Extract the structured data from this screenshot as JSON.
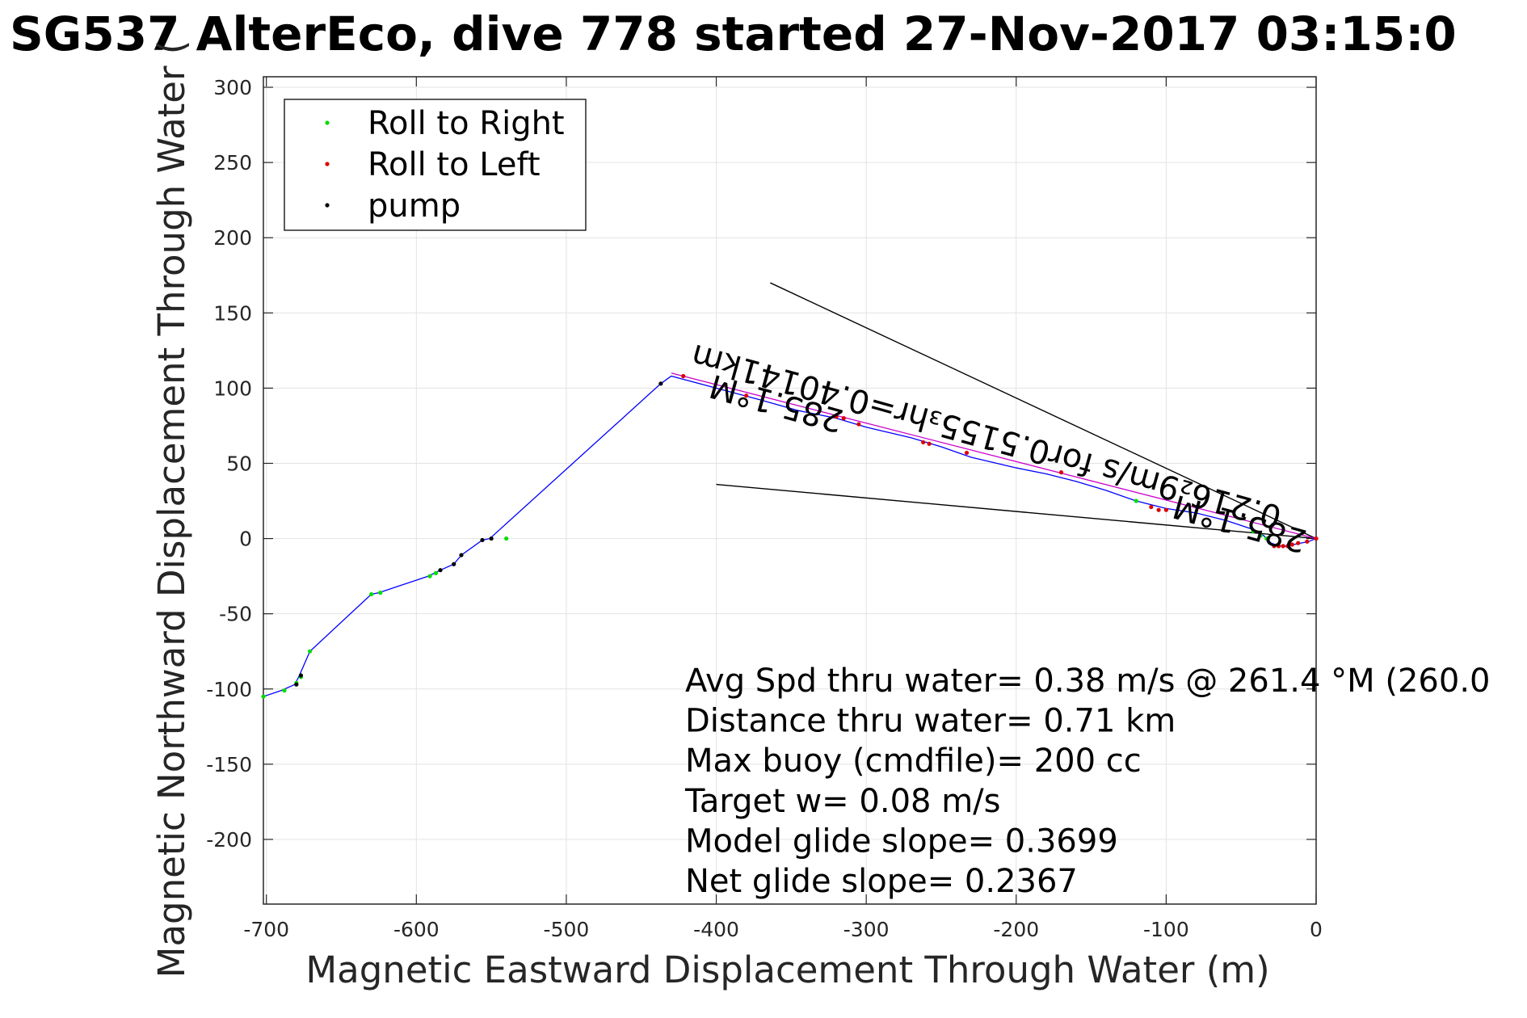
{
  "chart_data": {
    "type": "scatter",
    "title": "SG537 AlterEco, dive 778 started 27-Nov-2017 03:15:0",
    "xlabel": "Magnetic Eastward Displacement Through Water (m)",
    "ylabel": "Magnetic Northward Displacement Through Water (",
    "xlim": [
      -702,
      0
    ],
    "ylim": [
      -243,
      307
    ],
    "x_ticks": [
      -700,
      -600,
      -500,
      -400,
      -300,
      -200,
      -100,
      0
    ],
    "x_tick_labels": [
      "-700",
      "-600",
      "-500",
      "-400",
      "-300",
      "-200",
      "-100",
      "0"
    ],
    "y_ticks": [
      -200,
      -150,
      -100,
      -50,
      0,
      50,
      100,
      150,
      200,
      250,
      300
    ],
    "y_tick_labels": [
      "-200",
      "-150",
      "-100",
      "-50",
      "0",
      "50",
      "100",
      "150",
      "200",
      "250",
      "300"
    ],
    "grid": true,
    "legend_position": "top-left",
    "legend": [
      {
        "label": "Roll to Right",
        "color": "#00dd00"
      },
      {
        "label": "Roll to Left",
        "color": "#dd0000"
      },
      {
        "label": "pump",
        "color": "#000000"
      }
    ],
    "track": {
      "color": "#0000ff",
      "points": [
        [
          -702,
          -105
        ],
        [
          -690,
          -101
        ],
        [
          -681,
          -97
        ],
        [
          -678,
          -91
        ],
        [
          -671,
          -75
        ],
        [
          -630,
          -37
        ],
        [
          -625,
          -36
        ],
        [
          -592,
          -25
        ],
        [
          -588,
          -23
        ],
        [
          -584,
          -21
        ],
        [
          -575,
          -17
        ],
        [
          -570,
          -11
        ],
        [
          -556,
          -1
        ],
        [
          -551,
          0
        ],
        [
          -437,
          103
        ],
        [
          -430,
          108
        ],
        [
          -400,
          100
        ],
        [
          -370,
          92
        ],
        [
          -345,
          85
        ],
        [
          -320,
          80
        ],
        [
          -300,
          74
        ],
        [
          -270,
          67
        ],
        [
          -250,
          61
        ],
        [
          -230,
          54
        ],
        [
          -200,
          47
        ],
        [
          -180,
          43
        ],
        [
          -160,
          38
        ],
        [
          -140,
          32
        ],
        [
          -120,
          25
        ],
        [
          -100,
          20
        ],
        [
          -80,
          17
        ],
        [
          -60,
          12
        ],
        [
          -42,
          6
        ],
        [
          -35,
          2
        ],
        [
          -30,
          -3
        ],
        [
          -25,
          -5
        ],
        [
          -20,
          -5
        ],
        [
          -15,
          -4
        ],
        [
          -10,
          -3
        ],
        [
          -5,
          -2
        ],
        [
          0,
          0
        ]
      ]
    },
    "magenta_line": {
      "color": "#cc00cc",
      "points": [
        [
          -430,
          110
        ],
        [
          0,
          0
        ]
      ]
    },
    "roll_right_points": [
      [
        -702,
        -105
      ],
      [
        -688,
        -101
      ],
      [
        -680,
        -96
      ],
      [
        -677,
        -92
      ],
      [
        -671,
        -75
      ],
      [
        -630,
        -37
      ],
      [
        -624,
        -36
      ],
      [
        -591,
        -25
      ],
      [
        -587,
        -23
      ],
      [
        -540,
        0
      ],
      [
        -42,
        5
      ],
      [
        -37,
        2
      ],
      [
        -33,
        0
      ],
      [
        -120,
        25
      ]
    ],
    "roll_left_points": [
      [
        -422,
        108
      ],
      [
        -380,
        95
      ],
      [
        -320,
        81
      ],
      [
        -315,
        80
      ],
      [
        -305,
        76
      ],
      [
        -262,
        64
      ],
      [
        -258,
        63
      ],
      [
        -233,
        57
      ],
      [
        -170,
        44
      ],
      [
        -110,
        21
      ],
      [
        -105,
        19
      ],
      [
        -100,
        19
      ],
      [
        -28,
        -5
      ],
      [
        -25,
        -5
      ],
      [
        -22,
        -5
      ],
      [
        -19,
        -5
      ],
      [
        -16,
        -4
      ],
      [
        -12,
        -3
      ],
      [
        -6,
        -2
      ],
      [
        0,
        0
      ]
    ],
    "pump_points": [
      [
        -680,
        -97
      ],
      [
        -677,
        -91
      ],
      [
        -584,
        -21
      ],
      [
        -575,
        -17
      ],
      [
        -570,
        -11
      ],
      [
        -556,
        -1
      ],
      [
        -550,
        0
      ],
      [
        -437,
        103
      ]
    ],
    "reference_lines": [
      {
        "color": "#000000",
        "points": [
          [
            -364,
            170
          ],
          [
            0,
            0
          ]
        ]
      },
      {
        "color": "#000000",
        "points": [
          [
            -400,
            36
          ],
          [
            0,
            0
          ]
        ]
      }
    ],
    "annotations": [
      {
        "text": "285.1°M",
        "x": -358,
        "y": 97,
        "angle_deg": 195.5
      },
      {
        "text": "0.216₂9m/s for0.5155₃hr=0.40141km",
        "x": -218,
        "y": 75,
        "angle_deg": 195.5
      },
      {
        "text": "285.1°M",
        "x": -49,
        "y": 17,
        "angle_deg": 195.5
      }
    ],
    "stats": [
      "Avg Spd thru water=  0.38 m/s @ 261.4 °M (260.0",
      "Distance thru water=  0.71 km",
      "Max buoy (cmdfile)= 200 cc",
      "Target w= 0.08 m/s",
      "Model glide slope= 0.3699",
      "Net glide slope= 0.2367"
    ]
  }
}
